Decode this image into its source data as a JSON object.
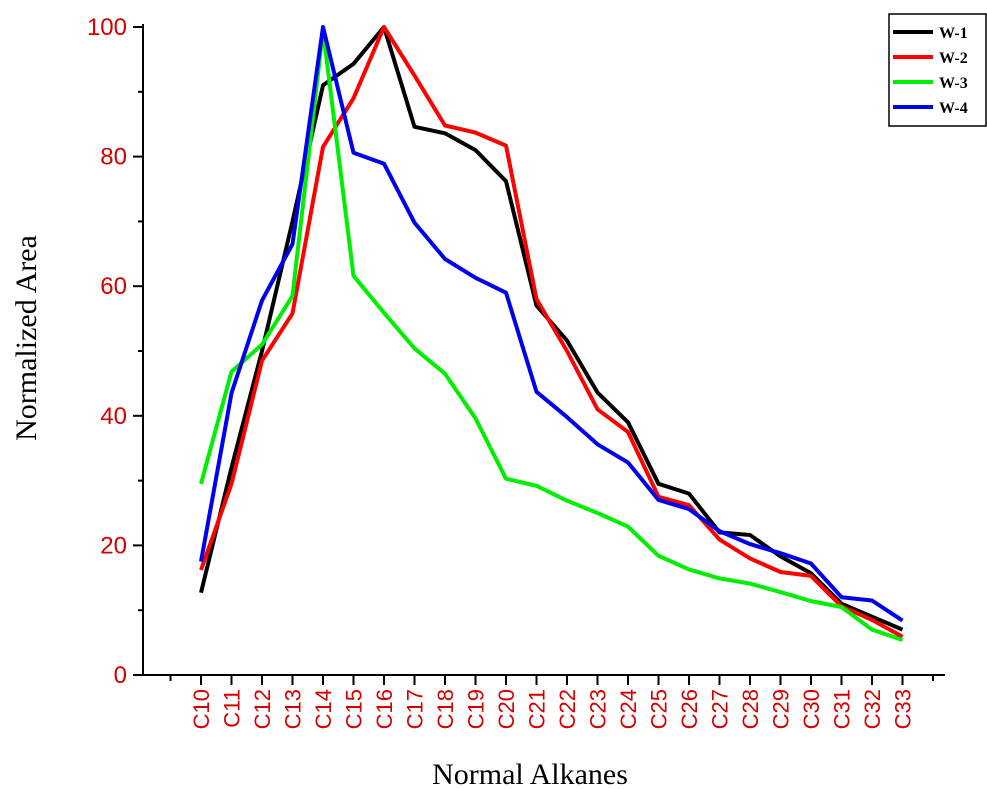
{
  "chart_data": {
    "type": "line",
    "title": "",
    "xlabel": "Normal Alkanes",
    "ylabel": "Normalized Area",
    "ylim": [
      0,
      100
    ],
    "yticks": [
      0,
      20,
      40,
      60,
      80,
      100
    ],
    "grid": false,
    "legend_position": "top-right",
    "categories": [
      "C10",
      "C11",
      "C12",
      "C13",
      "C14",
      "C15",
      "C16",
      "C17",
      "C18",
      "C19",
      "C20",
      "C21",
      "C22",
      "C23",
      "C24",
      "C25",
      "C26",
      "C27",
      "C28",
      "C29",
      "C30",
      "C31",
      "C32",
      "C33"
    ],
    "series": [
      {
        "name": "W-1",
        "color": "#000000",
        "values": [
          12.7,
          32,
          50,
          70,
          91,
          94.3,
          100,
          84.6,
          83.6,
          81,
          76.2,
          57,
          51.6,
          43.6,
          39,
          29.5,
          28,
          22,
          21.6,
          18.3,
          15.7,
          11,
          9,
          7
        ]
      },
      {
        "name": "W-2",
        "color": "#ff0000",
        "values": [
          16.2,
          29.5,
          48.5,
          55.8,
          81.5,
          89,
          100,
          92.5,
          84.8,
          83.7,
          81.7,
          58,
          50,
          41,
          37.5,
          27.5,
          26.2,
          20.9,
          18,
          15.9,
          15.3,
          10.6,
          8.5,
          5.9
        ]
      },
      {
        "name": "W-3",
        "color": "#00ee00",
        "values": [
          29.5,
          46.8,
          51,
          58.5,
          99.5,
          61.6,
          55.9,
          50.4,
          46.5,
          39.6,
          30.3,
          29.2,
          26.9,
          25,
          22.9,
          18.4,
          16.3,
          14.9,
          14.1,
          12.8,
          11.4,
          10.5,
          7,
          5.4
        ]
      },
      {
        "name": "W-4",
        "color": "#0000ee",
        "values": [
          17.5,
          43.5,
          57.8,
          66.5,
          100,
          80.6,
          78.9,
          69.8,
          64.2,
          61.3,
          59,
          43.7,
          39.8,
          35.6,
          32.8,
          27,
          25.6,
          22.2,
          20.2,
          18.8,
          17.2,
          12,
          11.5,
          8.4
        ]
      }
    ]
  }
}
